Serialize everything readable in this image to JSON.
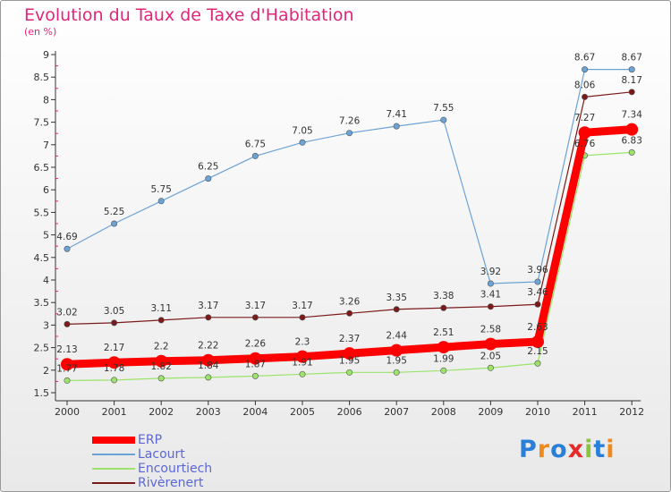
{
  "title": "Evolution du Taux de Taxe d'Habitation",
  "unit": "(en %)",
  "logo": {
    "letters": [
      "P",
      "r",
      "o",
      "x",
      "i",
      "t",
      "i"
    ],
    "colors": [
      "#2a7fd8",
      "#f08a1c",
      "#2a7fd8",
      "#e52a2a",
      "#8bc53f",
      "#2a7fd8",
      "#f08a1c"
    ]
  },
  "chart_data": {
    "type": "line",
    "x": [
      "2000",
      "2001",
      "2002",
      "2003",
      "2004",
      "2005",
      "2006",
      "2007",
      "2008",
      "2009",
      "2010",
      "2011",
      "2012"
    ],
    "ylim": [
      1.5,
      9
    ],
    "yticks": [
      "1.5",
      "2",
      "2.5",
      "3",
      "3.5",
      "4",
      "4.5",
      "5",
      "5.5",
      "6",
      "6.5",
      "7",
      "7.5",
      "8",
      "8.5",
      "9"
    ],
    "grid": false,
    "legend_position": "bottom-left",
    "series": [
      {
        "name": "ERP",
        "color": "#ff0000",
        "width": 9,
        "marker": 7,
        "values": [
          2.13,
          2.17,
          2.2,
          2.22,
          2.26,
          2.3,
          2.37,
          2.44,
          2.51,
          2.58,
          2.63,
          7.27,
          7.34
        ],
        "labels": [
          "2.13",
          "2.17",
          "2.2",
          "2.22",
          "2.26",
          "2.3",
          "2.37",
          "2.44",
          "2.51",
          "2.58",
          "2.63",
          "7.27",
          "7.34"
        ]
      },
      {
        "name": "Lacourt",
        "color": "#6ba3d6",
        "width": 1.2,
        "marker": 3.2,
        "values": [
          4.69,
          5.25,
          5.75,
          6.25,
          6.75,
          7.05,
          7.26,
          7.41,
          7.55,
          3.92,
          3.96,
          8.67,
          8.67
        ],
        "labels": [
          "4.69",
          "5.25",
          "5.75",
          "6.25",
          "6.75",
          "7.05",
          "7.26",
          "7.41",
          "7.55",
          "3.92",
          "3.96",
          "8.67",
          "8.67"
        ]
      },
      {
        "name": "Encourtiech",
        "color": "#9be36a",
        "width": 1.2,
        "marker": 3.2,
        "values": [
          1.77,
          1.78,
          1.82,
          1.84,
          1.87,
          1.91,
          1.95,
          1.95,
          1.99,
          2.05,
          2.15,
          6.76,
          6.83
        ],
        "labels": [
          "1.77",
          "1.78",
          "1.82",
          "1.84",
          "1.87",
          "1.91",
          "1.95",
          "1.95",
          "1.99",
          "2.05",
          "2.15",
          "6.76",
          "6.83"
        ]
      },
      {
        "name": "Rivèrenert",
        "color": "#7a1a1a",
        "width": 1.2,
        "marker": 3.2,
        "values": [
          3.02,
          3.05,
          3.11,
          3.17,
          3.17,
          3.17,
          3.26,
          3.35,
          3.38,
          3.41,
          3.46,
          8.06,
          8.17
        ],
        "labels": [
          "3.02",
          "3.05",
          "3.11",
          "3.17",
          "3.17",
          "3.17",
          "3.26",
          "3.35",
          "3.38",
          "3.41",
          "3.46",
          "8.06",
          "8.17"
        ]
      }
    ]
  }
}
